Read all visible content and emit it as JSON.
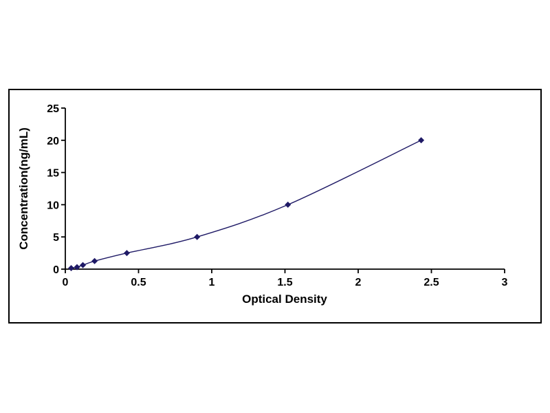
{
  "chart_data": {
    "type": "line",
    "title": "",
    "xlabel": "Optical Density",
    "ylabel": "Concentration(ng/mL)",
    "xlim": [
      0,
      3
    ],
    "ylim": [
      0,
      25
    ],
    "x_ticks": [
      "0",
      "0.5",
      "1",
      "1.5",
      "2",
      "2.5",
      "3"
    ],
    "y_ticks": [
      "0",
      "5",
      "10",
      "15",
      "20",
      "25"
    ],
    "grid": false,
    "legend": "none",
    "marker": "diamond",
    "colors": {
      "line": "#1f1a66",
      "marker": "#1f1a66",
      "axis": "#000000",
      "frame_border": "#000000",
      "background": "#ffffff"
    },
    "x": [
      0.04,
      0.08,
      0.12,
      0.2,
      0.42,
      0.9,
      1.52,
      2.43
    ],
    "y": [
      0.156,
      0.312,
      0.625,
      1.25,
      2.5,
      5,
      10,
      20
    ]
  }
}
